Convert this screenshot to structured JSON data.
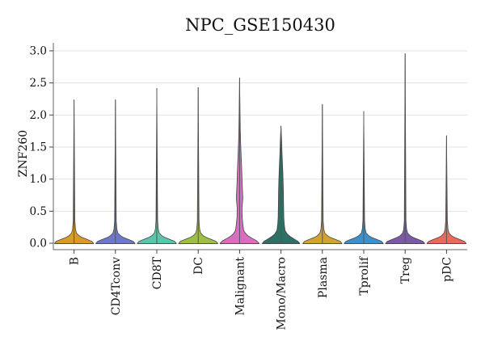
{
  "chart_data": {
    "type": "violin",
    "title": "NPC_GSE150430",
    "xlabel": "",
    "ylabel": "ZNF260",
    "ylim": [
      -0.1,
      3.1
    ],
    "yticks": [
      "0.0",
      "0.5",
      "1.0",
      "1.5",
      "2.0",
      "2.5",
      "3.0"
    ],
    "grid": "horizontal",
    "legend": "none",
    "categories": [
      "B",
      "CD4Tconv",
      "CD8T",
      "DC",
      "Malignant",
      "Mono/Macro",
      "Plasma",
      "Tprolif",
      "Treg",
      "pDC"
    ],
    "series": [
      {
        "category": "B",
        "max": 2.24,
        "color": "#d99a2b",
        "shape": "flat"
      },
      {
        "category": "CD4Tconv",
        "max": 2.24,
        "color": "#6f78c8",
        "shape": "flat"
      },
      {
        "category": "CD8T",
        "max": 2.42,
        "color": "#5cc4a8",
        "shape": "flat"
      },
      {
        "category": "DC",
        "max": 2.43,
        "color": "#9dbf49",
        "shape": "flat"
      },
      {
        "category": "Malignant",
        "max": 2.58,
        "color": "#d66fc0",
        "shape": "malignant"
      },
      {
        "category": "Mono/Macro",
        "max": 1.83,
        "color": "#2f6f66",
        "shape": "mono"
      },
      {
        "category": "Plasma",
        "max": 2.17,
        "color": "#d1a431",
        "shape": "flat"
      },
      {
        "category": "Tprolif",
        "max": 2.06,
        "color": "#3f8fc8",
        "shape": "flat"
      },
      {
        "category": "Treg",
        "max": 2.96,
        "color": "#7a5aa6",
        "shape": "flat"
      },
      {
        "category": "pDC",
        "max": 1.68,
        "color": "#e96a5c",
        "shape": "flat"
      }
    ]
  }
}
